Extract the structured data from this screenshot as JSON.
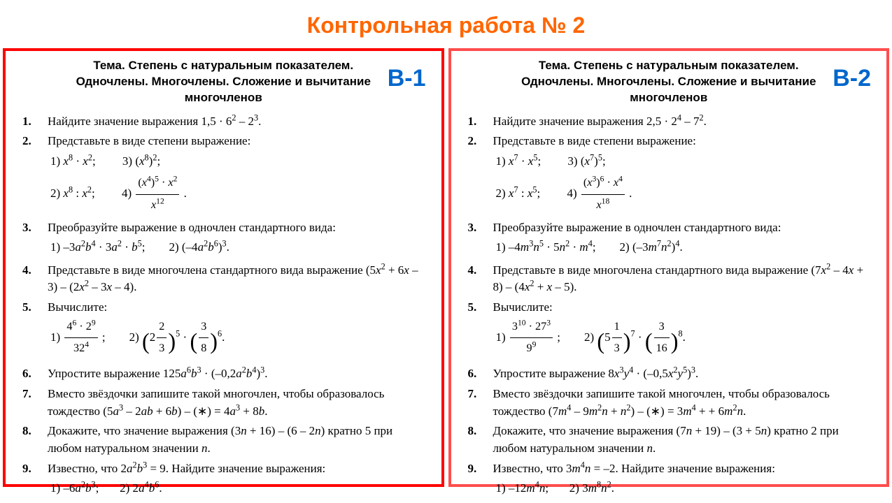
{
  "page_title": "Контрольная работа № 2",
  "theme_label": "Тема.",
  "theme_text": "Степень с натуральным показателем. Одночлены. Многочлены. Сложение и вычитание многочленов",
  "colors": {
    "title": "#ff6600",
    "variant_label": "#0066cc",
    "v1_border": "#ff0000",
    "v2_border": "#ff4d4d"
  },
  "variants": [
    {
      "label": "В-1",
      "tasks": [
        {
          "n": "1.",
          "html": "Найдите значение выражения 1,5 · 6<sup>2</sup> – 2<sup>3</sup>."
        },
        {
          "n": "2.",
          "html": "Представьте в виде степени выражение:<div class='sub'>1) <i>x</i><sup>8</sup> · <i>x</i><sup>2</sup>;&nbsp;&nbsp;&nbsp;&nbsp;&nbsp;&nbsp;&nbsp;&nbsp;&nbsp;3) (<i>x</i><sup>8</sup>)<sup>2</sup>;<br>2) <i>x</i><sup>8</sup> : <i>x</i><sup>2</sup>;&nbsp;&nbsp;&nbsp;&nbsp;&nbsp;&nbsp;&nbsp;&nbsp;&nbsp;4) <span class='frac'><span class='n'>(<i>x</i><sup>4</sup>)<sup>5</sup> · <i>x</i><sup>2</sup></span><span class='d'><i>x</i><sup>12</sup></span></span> .</div>"
        },
        {
          "n": "3.",
          "html": "Преобразуйте выражение в одночлен стандартного вида:<div class='sub'>1) –3<i>a</i><sup>2</sup><i>b</i><sup>4</sup> · 3<i>a</i><sup>2</sup> · <i>b</i><sup>5</sup>;&nbsp;&nbsp;&nbsp;&nbsp;&nbsp;&nbsp;&nbsp;&nbsp;2) (–4<i>a</i><sup>2</sup><i>b</i><sup>6</sup>)<sup>3</sup>.</div>"
        },
        {
          "n": "4.",
          "html": "Представьте в виде многочлена стандартного вида выражение (5<i>x</i><sup>2</sup> + 6<i>x</i> – 3) – (2<i>x</i><sup>2</sup> – 3<i>x</i> – 4)."
        },
        {
          "n": "5.",
          "html": "Вычислите:<div class='sub'>1) <span class='frac'><span class='n'>4<sup>6</sup> · 2<sup>9</sup></span><span class='d'>32<sup>4</sup></span></span> ;&nbsp;&nbsp;&nbsp;&nbsp;&nbsp;&nbsp;&nbsp;&nbsp;2) <span class='lp'>(</span>2<span class='frac'><span class='n'>2</span><span class='d'>3</span></span><span class='lp'>)</span><sup>5</sup> · <span class='lp'>(</span><span class='frac'><span class='n'>3</span><span class='d'>8</span></span><span class='lp'>)</span><sup>6</sup>.</div>"
        },
        {
          "n": "6.",
          "html": "Упростите выражение 125<i>a</i><sup>6</sup><i>b</i><sup>3</sup> · (–0,2<i>a</i><sup>2</sup><i>b</i><sup>4</sup>)<sup>3</sup>."
        },
        {
          "n": "7.",
          "html": "Вместо звёздочки запишите такой многочлен, чтобы образовалось тождество (5<i>a</i><sup>3</sup> – 2<i>ab</i> + 6<i>b</i>) – (∗) = 4<i>a</i><sup>3</sup> + 8<i>b</i>."
        },
        {
          "n": "8.",
          "html": "Докажите, что значение выражения (3<i>n</i> + 16) – (6 – 2<i>n</i>) кратно 5 при любом натуральном значении <i>n</i>."
        },
        {
          "n": "9.",
          "html": "Известно, что 2<i>a</i><sup>2</sup><i>b</i><sup>3</sup> = 9. Найдите значение выражения:<div class='sub'>1) –6<i>a</i><sup>2</sup><i>b</i><sup>3</sup>;&nbsp;&nbsp;&nbsp;&nbsp;&nbsp;&nbsp;&nbsp;2) 2<i>a</i><sup>4</sup><i>b</i><sup>6</sup>.</div>"
        }
      ]
    },
    {
      "label": "В-2",
      "tasks": [
        {
          "n": "1.",
          "html": "Найдите значение выражения 2,5 · 2<sup>4</sup> – 7<sup>2</sup>."
        },
        {
          "n": "2.",
          "html": "Представьте в виде степени выражение:<div class='sub'>1) <i>x</i><sup>7</sup> · <i>x</i><sup>5</sup>;&nbsp;&nbsp;&nbsp;&nbsp;&nbsp;&nbsp;&nbsp;&nbsp;&nbsp;3) (<i>x</i><sup>7</sup>)<sup>5</sup>;<br>2) <i>x</i><sup>7</sup> : <i>x</i><sup>5</sup>;&nbsp;&nbsp;&nbsp;&nbsp;&nbsp;&nbsp;&nbsp;&nbsp;&nbsp;4) <span class='frac'><span class='n'>(<i>x</i><sup>3</sup>)<sup>6</sup> · <i>x</i><sup>4</sup></span><span class='d'><i>x</i><sup>18</sup></span></span> .</div>"
        },
        {
          "n": "3.",
          "html": "Преобразуйте выражение в одночлен стандартного вида:<div class='sub'>1) –4<i>m</i><sup>3</sup><i>n</i><sup>5</sup> · 5<i>n</i><sup>2</sup> · <i>m</i><sup>4</sup>;&nbsp;&nbsp;&nbsp;&nbsp;&nbsp;&nbsp;&nbsp;&nbsp;2) (–3<i>m</i><sup>7</sup><i>n</i><sup>2</sup>)<sup>4</sup>.</div>"
        },
        {
          "n": "4.",
          "html": "Представьте в виде многочлена стандартного вида выражение (7<i>x</i><sup>2</sup> – 4<i>x</i> + 8) – (4<i>x</i><sup>2</sup> + <i>x</i> – 5)."
        },
        {
          "n": "5.",
          "html": "Вычислите:<div class='sub'>1) <span class='frac'><span class='n'>3<sup>10</sup> · 27<sup>3</sup></span><span class='d'>9<sup>9</sup></span></span> ;&nbsp;&nbsp;&nbsp;&nbsp;&nbsp;&nbsp;&nbsp;&nbsp;2) <span class='lp'>(</span>5<span class='frac'><span class='n'>1</span><span class='d'>3</span></span><span class='lp'>)</span><sup>7</sup> · <span class='lp'>(</span><span class='frac'><span class='n'>3</span><span class='d'>16</span></span><span class='lp'>)</span><sup>8</sup>.</div>"
        },
        {
          "n": "6.",
          "html": "Упростите выражение 8<i>x</i><sup>3</sup><i>y</i><sup>4</sup> · (–0,5<i>x</i><sup>2</sup><i>y</i><sup>5</sup>)<sup>3</sup>."
        },
        {
          "n": "7.",
          "html": "Вместо звёздочки запишите такой многочлен, чтобы образовалось тождество (7<i>m</i><sup>4</sup> – 9<i>m</i><sup>2</sup><i>n</i> + <i>n</i><sup>2</sup>) – (∗) = 3<i>m</i><sup>4</sup> + + 6<i>m</i><sup>2</sup><i>n</i>."
        },
        {
          "n": "8.",
          "html": "Докажите, что значение выражения (7<i>n</i> + 19) – (3 + 5<i>n</i>) кратно 2 при любом натуральном значении <i>n</i>."
        },
        {
          "n": "9.",
          "html": "Известно, что 3<i>m</i><sup>4</sup><i>n</i> = –2. Найдите значение выражения:<div class='sub'>1) –12<i>m</i><sup>4</sup><i>n</i>;&nbsp;&nbsp;&nbsp;&nbsp;&nbsp;&nbsp;&nbsp;2) 3<i>m</i><sup>8</sup><i>n</i><sup>2</sup>.</div>"
        }
      ]
    }
  ]
}
